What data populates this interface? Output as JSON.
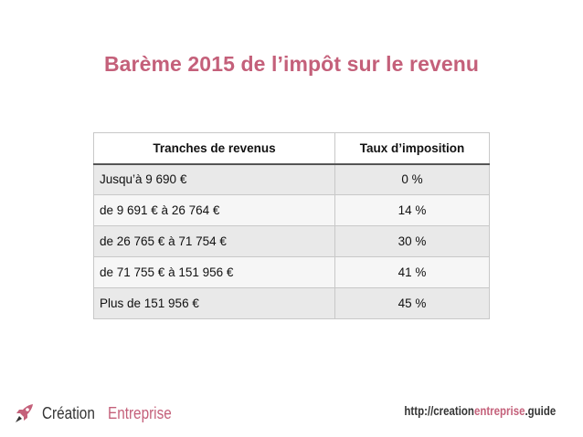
{
  "title": "Barème 2015 de l’impôt sur le revenu",
  "table": {
    "headers": [
      "Tranches de revenus",
      "Taux d’imposition"
    ],
    "rows": [
      {
        "range": "Jusqu’à 9 690 €",
        "rate": "0 %"
      },
      {
        "range": "de 9 691 € à 26 764 €",
        "rate": "14 %"
      },
      {
        "range": "de 26 765 € à 71 754 €",
        "rate": "30 %"
      },
      {
        "range": "de 71 755 € à 151 956 €",
        "rate": "41 %"
      },
      {
        "range": "Plus de 151 956 €",
        "rate": "45 %"
      }
    ]
  },
  "footer": {
    "brand_part1": "Création",
    "brand_part2": "Entreprise",
    "url_part1": "http://creation",
    "url_part2": "entreprise",
    "url_part3": ".guide",
    "logo_icon": "rocket-icon"
  },
  "colors": {
    "accent": "#c4607a",
    "text": "#111111"
  }
}
